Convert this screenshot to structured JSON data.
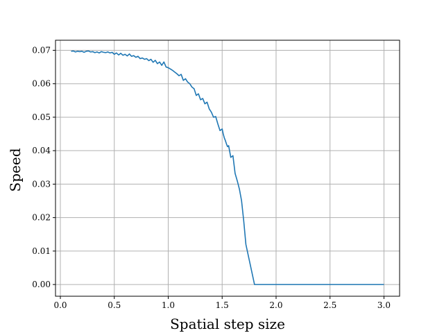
{
  "chart_data": {
    "type": "line",
    "title": "",
    "xlabel": "Spatial step size",
    "ylabel": "Speed",
    "xlim": [
      -0.045,
      3.145
    ],
    "ylim": [
      -0.0035,
      0.073
    ],
    "xticks": [
      0.0,
      0.5,
      1.0,
      1.5,
      2.0,
      2.5,
      3.0
    ],
    "xtick_labels": [
      "0.0",
      "0.5",
      "1.0",
      "1.5",
      "2.0",
      "2.5",
      "3.0"
    ],
    "yticks": [
      0.0,
      0.01,
      0.02,
      0.03,
      0.04,
      0.05,
      0.06,
      0.07
    ],
    "ytick_labels": [
      "0.00",
      "0.01",
      "0.02",
      "0.03",
      "0.04",
      "0.05",
      "0.06",
      "0.07"
    ],
    "grid": true,
    "line_color": "#1f77b4",
    "series": [
      {
        "x": [
          0.1,
          0.12,
          0.14,
          0.16,
          0.18,
          0.2,
          0.22,
          0.24,
          0.26,
          0.28,
          0.3,
          0.32,
          0.34,
          0.36,
          0.38,
          0.4,
          0.42,
          0.44,
          0.46,
          0.48,
          0.5,
          0.52,
          0.54,
          0.56,
          0.58,
          0.6,
          0.62,
          0.64,
          0.66,
          0.68,
          0.7,
          0.72,
          0.74,
          0.76,
          0.78,
          0.8,
          0.82,
          0.84,
          0.86,
          0.88,
          0.9,
          0.92,
          0.94,
          0.96,
          0.98,
          1.0,
          1.02,
          1.04,
          1.06,
          1.08,
          1.1,
          1.12,
          1.14,
          1.16,
          1.18,
          1.2,
          1.22,
          1.24,
          1.26,
          1.28,
          1.3,
          1.32,
          1.34,
          1.36,
          1.38,
          1.4,
          1.42,
          1.44,
          1.46,
          1.48,
          1.5,
          1.51,
          1.52,
          1.53,
          1.54,
          1.55,
          1.56,
          1.58,
          1.6,
          1.62,
          1.64,
          1.66,
          1.68,
          1.7,
          1.72,
          1.8,
          2.0,
          2.2,
          2.4,
          2.6,
          2.8,
          3.0
        ],
        "y": [
          0.0697,
          0.0698,
          0.0695,
          0.0697,
          0.0696,
          0.0697,
          0.0694,
          0.0697,
          0.0698,
          0.0695,
          0.0696,
          0.0693,
          0.0695,
          0.0692,
          0.0696,
          0.0694,
          0.0693,
          0.0695,
          0.0692,
          0.0694,
          0.0688,
          0.0692,
          0.0686,
          0.0691,
          0.0685,
          0.0688,
          0.0683,
          0.0689,
          0.0682,
          0.0684,
          0.0679,
          0.0682,
          0.0675,
          0.0677,
          0.0673,
          0.0675,
          0.0669,
          0.0673,
          0.0664,
          0.067,
          0.066,
          0.0665,
          0.0655,
          0.0665,
          0.065,
          0.0648,
          0.0644,
          0.064,
          0.0635,
          0.063,
          0.0624,
          0.0628,
          0.061,
          0.0615,
          0.0605,
          0.06,
          0.059,
          0.0585,
          0.0565,
          0.057,
          0.0552,
          0.0556,
          0.054,
          0.0545,
          0.0525,
          0.0515,
          0.05,
          0.0502,
          0.048,
          0.046,
          0.0465,
          0.045,
          0.0438,
          0.043,
          0.042,
          0.0412,
          0.0415,
          0.038,
          0.0385,
          0.0332,
          0.031,
          0.0285,
          0.025,
          0.019,
          0.012,
          0.0,
          0.0,
          0.0,
          0.0,
          0.0,
          0.0,
          0.0
        ]
      }
    ]
  }
}
